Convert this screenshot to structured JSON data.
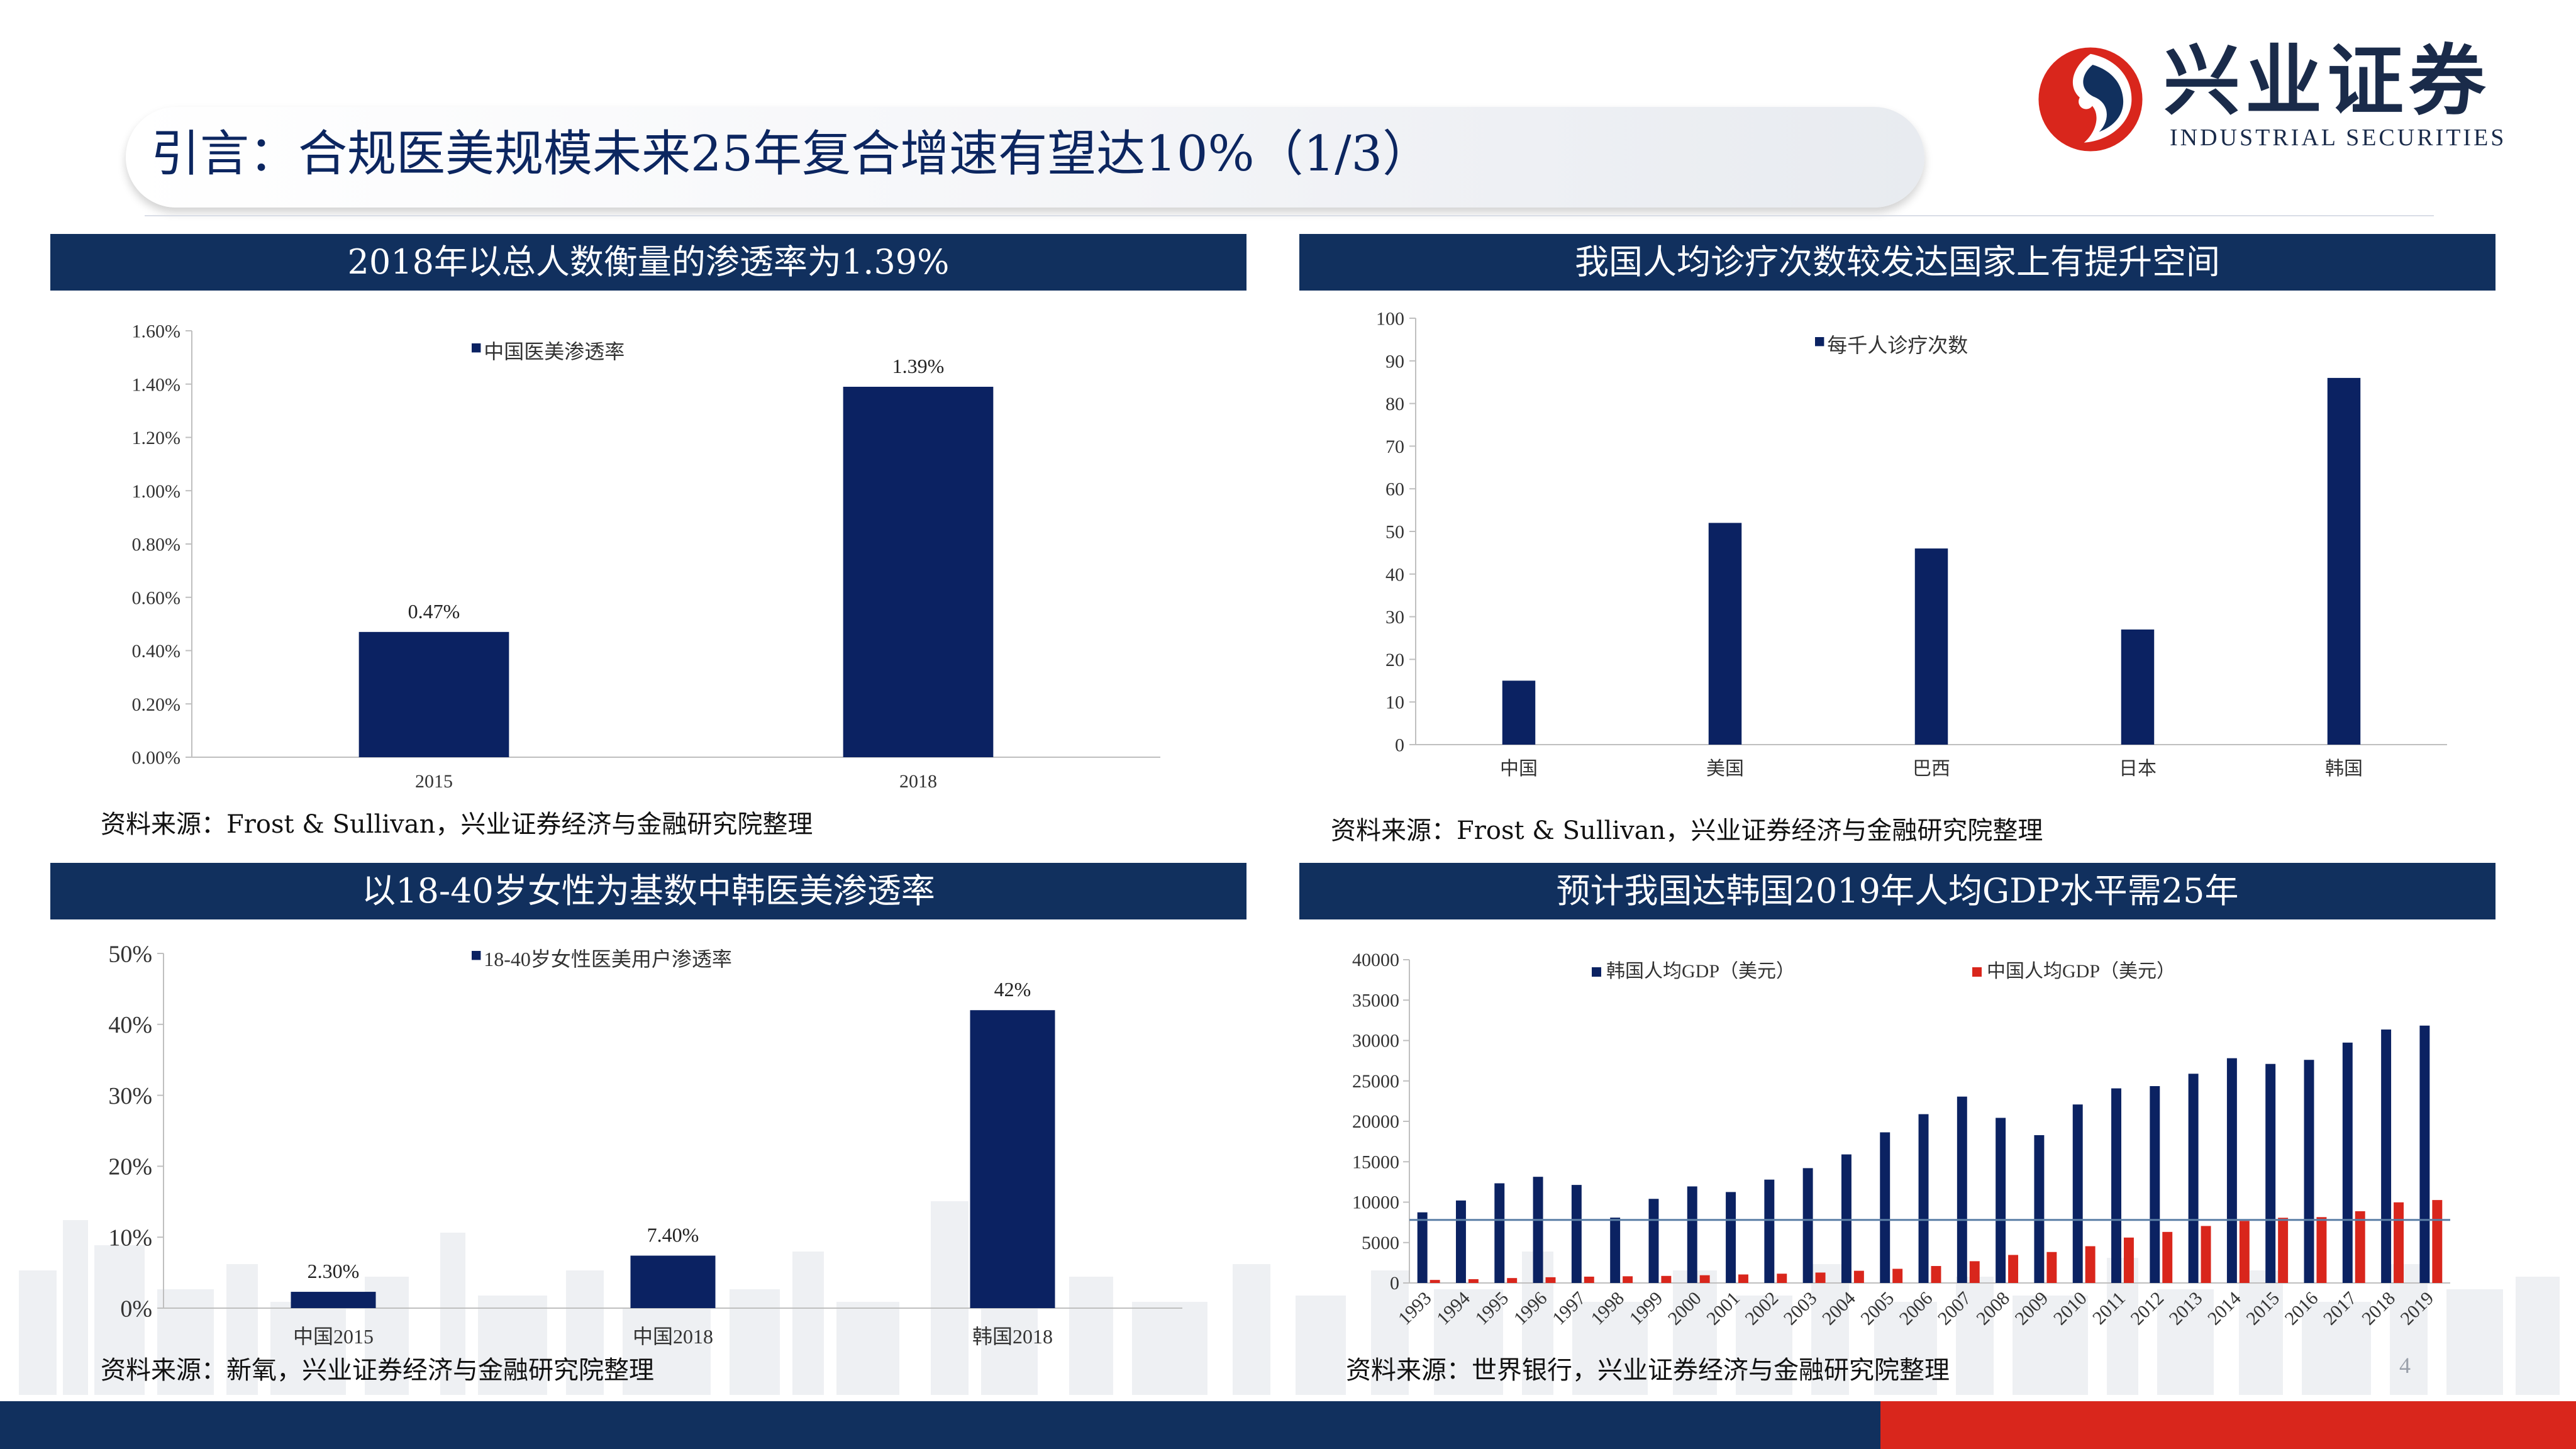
{
  "title": "引言：合规医美规模未来25年复合增速有望达10%（1/3）",
  "logo": {
    "cn": "兴业证券",
    "en": "INDUSTRIAL SECURITIES"
  },
  "page_number": "4",
  "colors": {
    "navy": "#11305e",
    "bar_blue": "#0b2262",
    "bar_red": "#d9261c",
    "brand_red": "#d9261c"
  },
  "panels": {
    "p1": {
      "heading": "2018年以总人数衡量的渗透率为1.39%",
      "source": "资料来源：Frost & Sullivan，兴业证券经济与金融研究院整理"
    },
    "p2": {
      "heading": "我国人均诊疗次数较发达国家上有提升空间",
      "source": "资料来源：Frost & Sullivan，兴业证券经济与金融研究院整理"
    },
    "p3": {
      "heading": "以18-40岁女性为基数中韩医美渗透率",
      "source": "资料来源：新氧，兴业证券经济与金融研究院整理"
    },
    "p4": {
      "heading": "预计我国达韩国2019年人均GDP水平需25年",
      "source": "资料来源：世界银行，兴业证券经济与金融研究院整理"
    }
  },
  "chart_data": [
    {
      "type": "bar",
      "categories": [
        "2015",
        "2018"
      ],
      "series": [
        {
          "name": "中国医美渗透率",
          "values": [
            0.47,
            1.39
          ]
        }
      ],
      "data_labels": [
        "0.47%",
        "1.39%"
      ],
      "yticks": [
        "0.00%",
        "0.20%",
        "0.40%",
        "0.60%",
        "0.80%",
        "1.00%",
        "1.20%",
        "1.40%",
        "1.60%"
      ],
      "ylim": [
        0,
        1.6
      ],
      "legend": "top-left"
    },
    {
      "type": "bar",
      "categories": [
        "中国",
        "美国",
        "巴西",
        "日本",
        "韩国"
      ],
      "series": [
        {
          "name": "每千人诊疗次数",
          "values": [
            15,
            52,
            46,
            27,
            86
          ]
        }
      ],
      "yticks": [
        "0",
        "10",
        "20",
        "30",
        "40",
        "50",
        "60",
        "70",
        "80",
        "90",
        "100"
      ],
      "ylim": [
        0,
        100
      ],
      "legend": "top-center"
    },
    {
      "type": "bar",
      "categories": [
        "中国2015",
        "中国2018",
        "韩国2018"
      ],
      "series": [
        {
          "name": "18-40岁女性医美用户渗透率",
          "values": [
            2.3,
            7.4,
            42
          ]
        }
      ],
      "data_labels": [
        "2.30%",
        "7.40%",
        "42%"
      ],
      "yticks": [
        "0%",
        "10%",
        "20%",
        "30%",
        "40%",
        "50%"
      ],
      "ylim": [
        0,
        50
      ],
      "legend": "top-center"
    },
    {
      "type": "bar",
      "categories": [
        "1993",
        "1994",
        "1995",
        "1996",
        "1997",
        "1998",
        "1999",
        "2000",
        "2001",
        "2002",
        "2003",
        "2004",
        "2005",
        "2006",
        "2007",
        "2008",
        "2009",
        "2010",
        "2011",
        "2012",
        "2013",
        "2014",
        "2015",
        "2016",
        "2017",
        "2018",
        "2019"
      ],
      "series": [
        {
          "name": "韩国人均GDP（美元）",
          "values": [
            8741,
            10206,
            12333,
            13138,
            12131,
            8085,
            10409,
            11948,
            11253,
            12789,
            14209,
            15908,
            18640,
            20888,
            23061,
            20431,
            18292,
            22087,
            24080,
            24359,
            25890,
            27811,
            27105,
            27608,
            29743,
            31363,
            31846
          ]
        },
        {
          "name": "中国人均GDP（美元）",
          "values": [
            377,
            473,
            609,
            709,
            782,
            828,
            873,
            959,
            1053,
            1149,
            1289,
            1509,
            1753,
            2099,
            2694,
            3468,
            3832,
            4550,
            5618,
            6317,
            7051,
            7679,
            8067,
            8148,
            8879,
            9977,
            10262
          ]
        }
      ],
      "reference_line": 7800,
      "yticks": [
        "0",
        "5000",
        "10000",
        "15000",
        "20000",
        "25000",
        "30000",
        "35000",
        "40000"
      ],
      "ylim": [
        0,
        40000
      ],
      "legend": "top"
    }
  ]
}
